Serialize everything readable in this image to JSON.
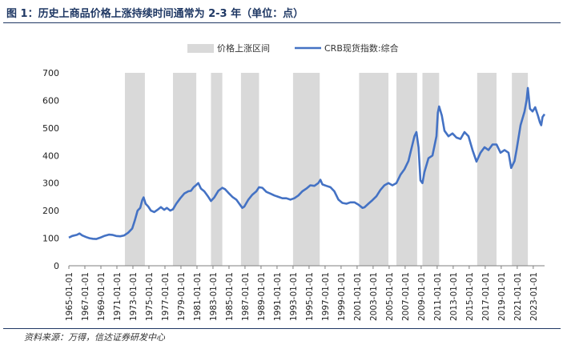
{
  "figure": {
    "title": "图 1：历史上商品价格上涨持续时间通常为 2-3 年（单位：点）",
    "source": "资料来源：万得，信达证券研发中心"
  },
  "colors": {
    "band": "#d9d9d9",
    "line": "#4472c4",
    "rule": "#1f3864",
    "axis": "#7f7f7f"
  },
  "chart_data": {
    "type": "line",
    "title": "",
    "xlabel": "",
    "ylabel": "",
    "ylim": [
      0,
      700
    ],
    "yticks": [
      0,
      100,
      200,
      300,
      400,
      500,
      600,
      700
    ],
    "xlim": [
      "1965-01-01",
      "2024-06-01"
    ],
    "xticks": [
      "1965-01-01",
      "1967-01-01",
      "1969-01-01",
      "1971-01-01",
      "1973-01-01",
      "1975-01-01",
      "1977-01-01",
      "1979-01-01",
      "1981-01-01",
      "1983-01-01",
      "1985-01-01",
      "1987-01-01",
      "1989-01-01",
      "1991-01-01",
      "1993-01-01",
      "1995-01-01",
      "1997-01-01",
      "1999-01-01",
      "2001-01-01",
      "2003-01-01",
      "2005-01-01",
      "2007-01-01",
      "2009-01-01",
      "2011-01-01",
      "2013-01-01",
      "2015-01-01",
      "2017-01-01",
      "2019-01-01",
      "2021-01-01",
      "2023-01-01"
    ],
    "legend": {
      "position": "top",
      "entries": [
        {
          "label": "价格上涨区间",
          "kind": "band"
        },
        {
          "label": "CRB现货指数:综合",
          "kind": "line"
        }
      ]
    },
    "bands": [
      {
        "name": "价格上涨区间",
        "start": "1972-01-01",
        "end": "1974-07-01"
      },
      {
        "name": "价格上涨区间",
        "start": "1978-01-01",
        "end": "1980-12-01"
      },
      {
        "name": "价格上涨区间",
        "start": "1982-10-01",
        "end": "1984-03-01"
      },
      {
        "name": "价格上涨区间",
        "start": "1986-07-01",
        "end": "1988-10-01"
      },
      {
        "name": "价格上涨区间",
        "start": "1993-01-01",
        "end": "1996-05-01"
      },
      {
        "name": "价格上涨区间",
        "start": "2001-04-01",
        "end": "2004-12-01"
      },
      {
        "name": "价格上涨区间",
        "start": "2005-12-01",
        "end": "2008-07-01"
      },
      {
        "name": "价格上涨区间",
        "start": "2009-03-01",
        "end": "2011-04-01"
      },
      {
        "name": "价格上涨区间",
        "start": "2016-01-01",
        "end": "2018-06-01"
      },
      {
        "name": "价格上涨区间",
        "start": "2020-05-01",
        "end": "2022-05-01"
      }
    ],
    "series": [
      {
        "name": "CRB现货指数:综合",
        "points": [
          [
            "1965-01-01",
            102
          ],
          [
            "1965-06-01",
            108
          ],
          [
            "1966-01-01",
            112
          ],
          [
            "1966-05-01",
            117
          ],
          [
            "1966-09-01",
            110
          ],
          [
            "1967-03-01",
            104
          ],
          [
            "1967-08-01",
            100
          ],
          [
            "1968-01-01",
            98
          ],
          [
            "1968-06-01",
            97
          ],
          [
            "1968-12-01",
            102
          ],
          [
            "1969-06-01",
            108
          ],
          [
            "1970-01-01",
            113
          ],
          [
            "1970-06-01",
            112
          ],
          [
            "1970-12-01",
            108
          ],
          [
            "1971-06-01",
            107
          ],
          [
            "1971-12-01",
            110
          ],
          [
            "1972-06-01",
            120
          ],
          [
            "1972-12-01",
            135
          ],
          [
            "1973-04-01",
            165
          ],
          [
            "1973-08-01",
            200
          ],
          [
            "1973-12-01",
            210
          ],
          [
            "1974-03-01",
            238
          ],
          [
            "1974-05-01",
            248
          ],
          [
            "1974-08-01",
            225
          ],
          [
            "1974-12-01",
            215
          ],
          [
            "1975-04-01",
            200
          ],
          [
            "1975-09-01",
            195
          ],
          [
            "1976-03-01",
            205
          ],
          [
            "1976-07-01",
            213
          ],
          [
            "1976-12-01",
            203
          ],
          [
            "1977-04-01",
            210
          ],
          [
            "1977-09-01",
            200
          ],
          [
            "1978-01-01",
            205
          ],
          [
            "1978-06-01",
            225
          ],
          [
            "1978-12-01",
            245
          ],
          [
            "1979-06-01",
            262
          ],
          [
            "1979-12-01",
            270
          ],
          [
            "1980-04-01",
            272
          ],
          [
            "1980-08-01",
            285
          ],
          [
            "1980-12-01",
            293
          ],
          [
            "1981-03-01",
            300
          ],
          [
            "1981-07-01",
            280
          ],
          [
            "1981-12-01",
            270
          ],
          [
            "1982-06-01",
            250
          ],
          [
            "1982-10-01",
            235
          ],
          [
            "1983-03-01",
            248
          ],
          [
            "1983-09-01",
            272
          ],
          [
            "1984-03-01",
            283
          ],
          [
            "1984-07-01",
            278
          ],
          [
            "1984-12-01",
            265
          ],
          [
            "1985-06-01",
            250
          ],
          [
            "1985-12-01",
            240
          ],
          [
            "1986-06-01",
            220
          ],
          [
            "1986-09-01",
            210
          ],
          [
            "1986-12-01",
            215
          ],
          [
            "1987-06-01",
            240
          ],
          [
            "1987-12-01",
            258
          ],
          [
            "1988-06-01",
            270
          ],
          [
            "1988-10-01",
            285
          ],
          [
            "1989-03-01",
            283
          ],
          [
            "1989-09-01",
            268
          ],
          [
            "1990-03-01",
            262
          ],
          [
            "1990-09-01",
            255
          ],
          [
            "1991-03-01",
            250
          ],
          [
            "1991-09-01",
            245
          ],
          [
            "1992-03-01",
            245
          ],
          [
            "1992-09-01",
            240
          ],
          [
            "1993-03-01",
            245
          ],
          [
            "1993-09-01",
            255
          ],
          [
            "1994-03-01",
            270
          ],
          [
            "1994-09-01",
            280
          ],
          [
            "1995-03-01",
            292
          ],
          [
            "1995-09-01",
            290
          ],
          [
            "1996-03-01",
            300
          ],
          [
            "1996-06-01",
            312
          ],
          [
            "1996-09-01",
            295
          ],
          [
            "1997-03-01",
            290
          ],
          [
            "1997-09-01",
            285
          ],
          [
            "1998-03-01",
            270
          ],
          [
            "1998-09-01",
            240
          ],
          [
            "1999-03-01",
            228
          ],
          [
            "1999-09-01",
            225
          ],
          [
            "2000-03-01",
            230
          ],
          [
            "2000-09-01",
            230
          ],
          [
            "2001-03-01",
            222
          ],
          [
            "2001-09-01",
            210
          ],
          [
            "2001-12-01",
            212
          ],
          [
            "2002-06-01",
            225
          ],
          [
            "2002-12-01",
            238
          ],
          [
            "2003-06-01",
            252
          ],
          [
            "2003-12-01",
            275
          ],
          [
            "2004-06-01",
            292
          ],
          [
            "2004-12-01",
            300
          ],
          [
            "2005-06-01",
            292
          ],
          [
            "2005-12-01",
            300
          ],
          [
            "2006-06-01",
            330
          ],
          [
            "2006-12-01",
            350
          ],
          [
            "2007-06-01",
            380
          ],
          [
            "2007-09-01",
            410
          ],
          [
            "2007-12-01",
            440
          ],
          [
            "2008-03-01",
            470
          ],
          [
            "2008-06-01",
            485
          ],
          [
            "2008-09-01",
            430
          ],
          [
            "2008-12-01",
            310
          ],
          [
            "2009-03-01",
            300
          ],
          [
            "2009-06-01",
            340
          ],
          [
            "2009-12-01",
            390
          ],
          [
            "2010-06-01",
            400
          ],
          [
            "2010-12-01",
            470
          ],
          [
            "2011-02-01",
            555
          ],
          [
            "2011-04-01",
            578
          ],
          [
            "2011-08-01",
            545
          ],
          [
            "2011-12-01",
            490
          ],
          [
            "2012-06-01",
            470
          ],
          [
            "2012-12-01",
            480
          ],
          [
            "2013-06-01",
            465
          ],
          [
            "2013-12-01",
            460
          ],
          [
            "2014-06-01",
            485
          ],
          [
            "2014-12-01",
            470
          ],
          [
            "2015-06-01",
            420
          ],
          [
            "2015-12-01",
            378
          ],
          [
            "2016-06-01",
            410
          ],
          [
            "2016-12-01",
            430
          ],
          [
            "2017-06-01",
            420
          ],
          [
            "2017-12-01",
            440
          ],
          [
            "2018-06-01",
            440
          ],
          [
            "2018-12-01",
            410
          ],
          [
            "2019-06-01",
            420
          ],
          [
            "2019-12-01",
            410
          ],
          [
            "2020-04-01",
            355
          ],
          [
            "2020-09-01",
            380
          ],
          [
            "2020-12-01",
            420
          ],
          [
            "2021-06-01",
            510
          ],
          [
            "2021-12-01",
            560
          ],
          [
            "2022-03-01",
            600
          ],
          [
            "2022-05-01",
            645
          ],
          [
            "2022-08-01",
            570
          ],
          [
            "2022-12-01",
            560
          ],
          [
            "2023-04-01",
            575
          ],
          [
            "2023-08-01",
            545
          ],
          [
            "2023-11-01",
            520
          ],
          [
            "2024-01-01",
            510
          ],
          [
            "2024-03-01",
            540
          ],
          [
            "2024-06-01",
            550
          ]
        ]
      }
    ]
  }
}
